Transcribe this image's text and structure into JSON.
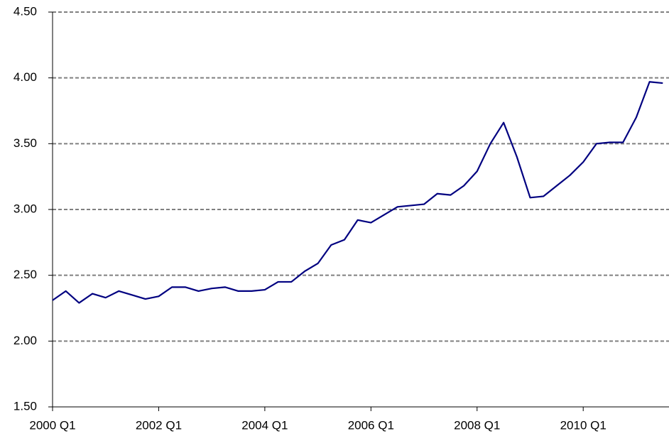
{
  "chart_data": {
    "type": "line",
    "categories": [
      "2000 Q1",
      null,
      null,
      null,
      null,
      null,
      null,
      null,
      "2002 Q1",
      null,
      null,
      null,
      null,
      null,
      null,
      null,
      "2004 Q1",
      null,
      null,
      null,
      null,
      null,
      null,
      null,
      "2006 Q1",
      null,
      null,
      null,
      null,
      null,
      null,
      null,
      "2008 Q1",
      null,
      null,
      null,
      null,
      null,
      null,
      null,
      "2010 Q1",
      null,
      null,
      null,
      null,
      null,
      null
    ],
    "series": [
      {
        "color": "#000080",
        "values": [
          2.31,
          2.38,
          2.29,
          2.36,
          2.33,
          2.38,
          2.35,
          2.32,
          2.34,
          2.41,
          2.41,
          2.38,
          2.4,
          2.41,
          2.38,
          2.38,
          2.39,
          2.45,
          2.45,
          2.53,
          2.59,
          2.73,
          2.77,
          2.92,
          2.9,
          2.96,
          3.02,
          3.03,
          3.04,
          3.12,
          3.11,
          3.18,
          3.29,
          3.5,
          3.66,
          3.4,
          3.09,
          3.1,
          3.18,
          3.26,
          3.36,
          3.5,
          3.51,
          3.51,
          3.7,
          3.97,
          3.96
        ]
      }
    ],
    "ylim": [
      1.5,
      4.5
    ],
    "yticks": [
      {
        "value": 1.5,
        "label": "1.50"
      },
      {
        "value": 2,
        "label": "2.00"
      },
      {
        "value": 2.5,
        "label": "2.50"
      },
      {
        "value": 3,
        "label": "3.00"
      },
      {
        "value": 3.5,
        "label": "3.50"
      },
      {
        "value": 4,
        "label": "4.00"
      },
      {
        "value": 4.5,
        "label": "4.50"
      }
    ],
    "grid": true
  }
}
